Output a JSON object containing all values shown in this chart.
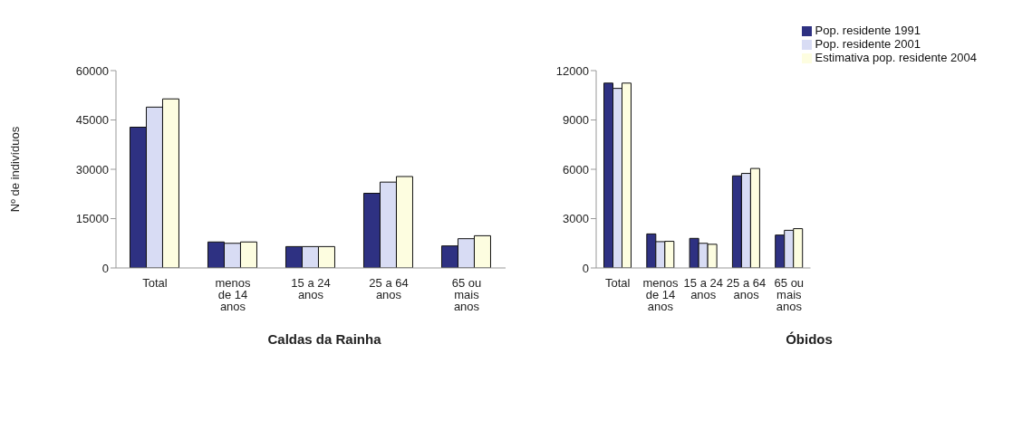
{
  "chart_data": [
    {
      "type": "bar",
      "title": "Caldas da Rainha",
      "ylabel": "Nº de indivíduos",
      "categories": [
        "Total",
        "menos de 14 anos",
        "15 a 24 anos",
        "25 a 64 anos",
        "65 ou mais anos"
      ],
      "ylim": [
        0,
        60000
      ],
      "yticks": [
        0,
        15000,
        30000,
        45000,
        60000
      ],
      "grid": false,
      "legend": false,
      "series": [
        {
          "color": "#2e3182",
          "values": [
            42800,
            7900,
            6500,
            22700,
            6700
          ]
        },
        {
          "color": "#d8dcf4",
          "values": [
            48900,
            7500,
            6500,
            26100,
            8900
          ]
        },
        {
          "color": "#fdfde0",
          "values": [
            51400,
            7900,
            6500,
            27800,
            9800
          ]
        }
      ]
    },
    {
      "type": "bar",
      "title": "Óbidos",
      "categories": [
        "Total",
        "menos de 14 anos",
        "15 a 24 anos",
        "25 a 64 anos",
        "65 ou mais anos"
      ],
      "ylim": [
        0,
        12000
      ],
      "yticks": [
        0,
        3000,
        6000,
        9000,
        12000
      ],
      "grid": false,
      "legend": "top right",
      "series": [
        {
          "name": "Pop. residente 1991",
          "color": "#2e3182",
          "values": [
            11240,
            2070,
            1800,
            5600,
            2000
          ]
        },
        {
          "name": "Pop. residente 2001",
          "color": "#d8dcf4",
          "values": [
            10920,
            1600,
            1500,
            5750,
            2290
          ]
        },
        {
          "name": "Estimativa pop. residente 2004",
          "color": "#fdfde0",
          "values": [
            11240,
            1620,
            1440,
            6050,
            2390
          ]
        }
      ]
    }
  ]
}
